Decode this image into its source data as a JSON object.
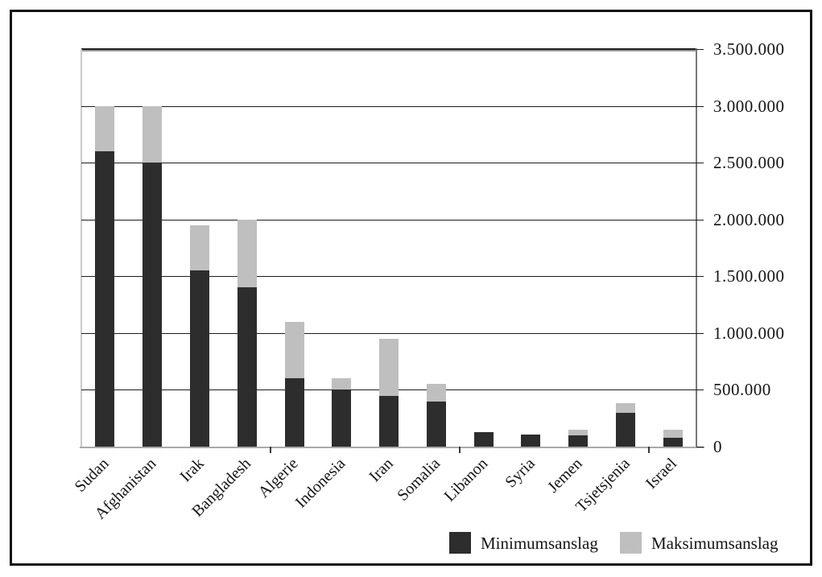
{
  "figure": {
    "background": "#ffffff",
    "border_color": "#111111"
  },
  "chart_data": {
    "type": "bar",
    "stacked": true,
    "orientation": "vertical",
    "title": "",
    "xlabel": "",
    "ylabel": "",
    "categories": [
      "Sudan",
      "Afghanistan",
      "Irak",
      "Bangladesh",
      "Algerie",
      "Indonesia",
      "Iran",
      "Somalia",
      "Libanon",
      "Syria",
      "Jemen",
      "Tsjetsjenia",
      "Israel"
    ],
    "series": [
      {
        "name": "Minimumsanslag",
        "color": "#2d2d2d",
        "values": [
          2600000,
          2500000,
          1550000,
          1400000,
          600000,
          500000,
          450000,
          400000,
          130000,
          110000,
          100000,
          300000,
          80000
        ]
      },
      {
        "name": "Maksimumsanslag",
        "color": "#bfbfbf",
        "note": "values are the total (maximum estimate); gray segment is drawn from the minimum up to this value",
        "values": [
          3000000,
          3000000,
          1950000,
          2000000,
          1100000,
          600000,
          950000,
          550000,
          130000,
          110000,
          150000,
          380000,
          150000
        ]
      }
    ],
    "ylim": [
      0,
      3500000
    ],
    "ytick_interval": 500000,
    "ytick_labels": [
      "0",
      "500.000",
      "1.000.000",
      "1.500.000",
      "2.000.000",
      "2.500.000",
      "3.000.000",
      "3.500.000"
    ],
    "yaxis_side": "right",
    "grid": true,
    "legend_position": "bottom-right"
  },
  "legend": {
    "items": [
      {
        "label": "Minimumsanslag",
        "color": "#2d2d2d"
      },
      {
        "label": "Maksimumsanslag",
        "color": "#bfbfbf"
      }
    ]
  }
}
